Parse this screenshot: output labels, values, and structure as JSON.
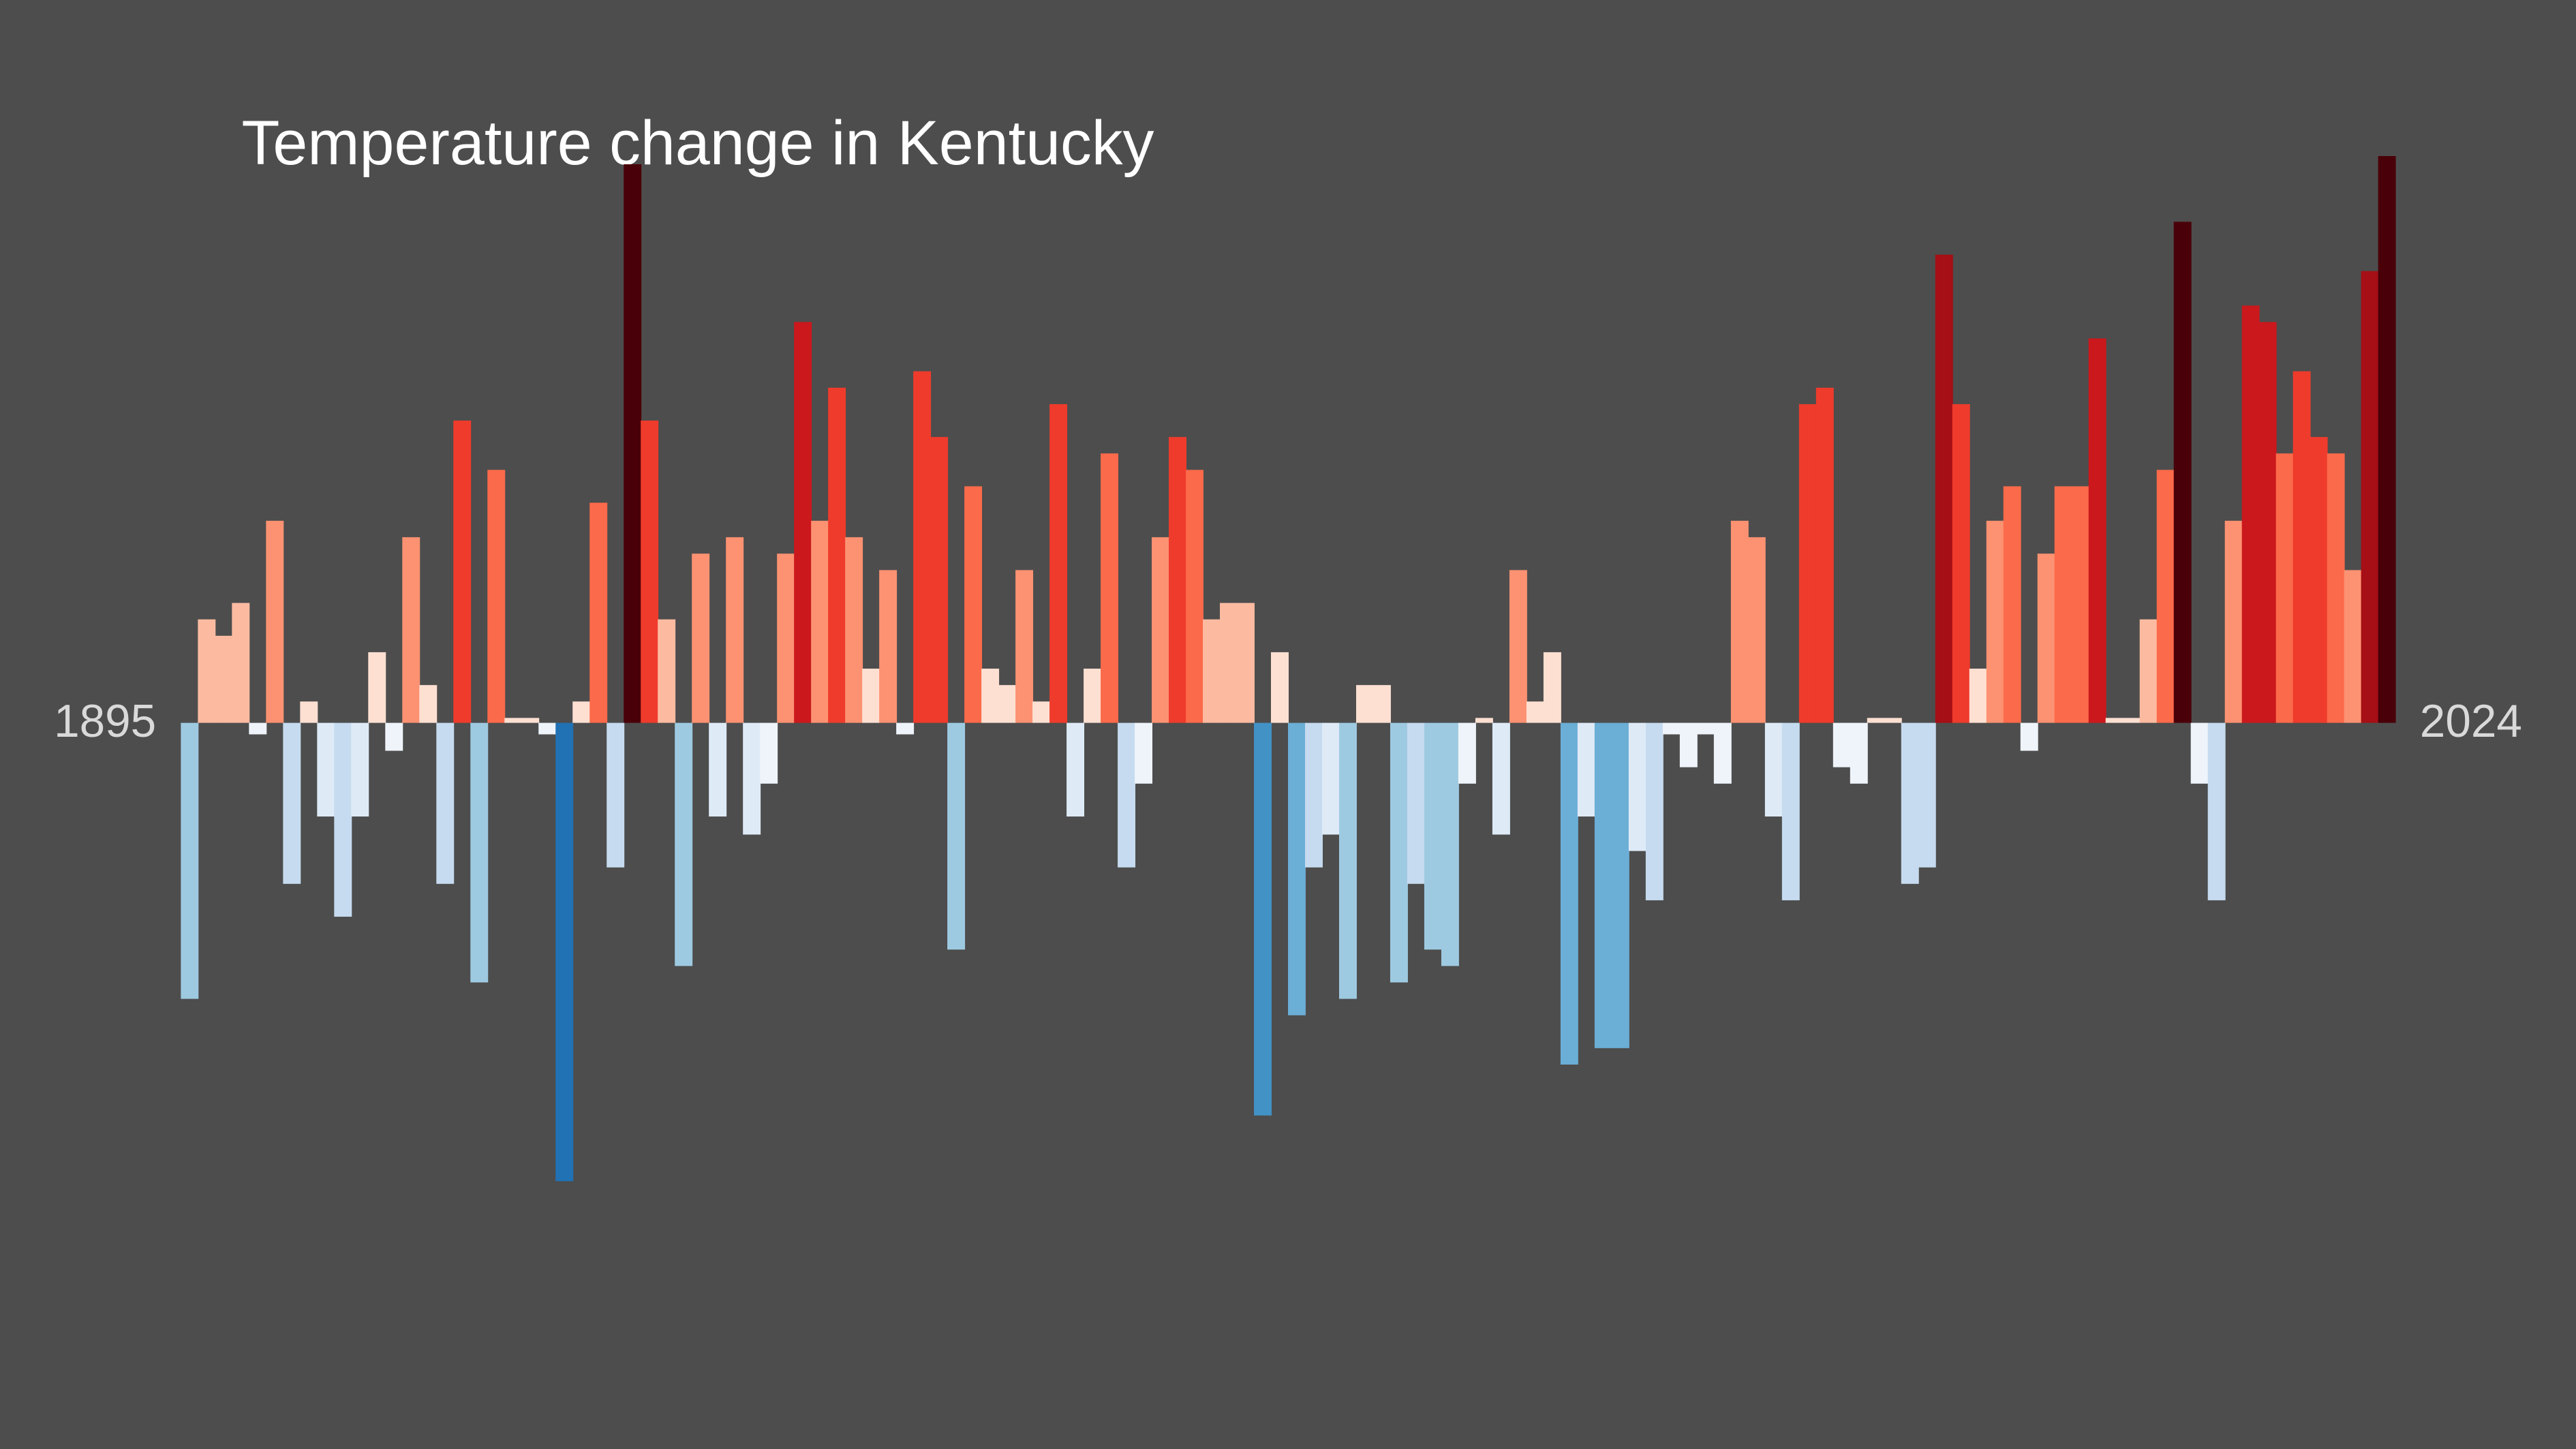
{
  "chart_data": {
    "type": "bar",
    "title": "Temperature change in Kentucky",
    "categories": [
      "1895",
      null,
      null,
      null,
      null,
      null,
      null,
      null,
      null,
      null,
      null,
      null,
      null,
      null,
      null,
      null,
      null,
      null,
      null,
      null,
      null,
      null,
      null,
      null,
      null,
      null,
      null,
      null,
      null,
      null,
      null,
      null,
      null,
      null,
      null,
      null,
      null,
      null,
      null,
      null,
      null,
      null,
      null,
      null,
      null,
      null,
      null,
      null,
      null,
      null,
      null,
      null,
      null,
      null,
      null,
      null,
      null,
      null,
      null,
      null,
      null,
      null,
      null,
      null,
      null,
      null,
      null,
      null,
      null,
      null,
      null,
      null,
      null,
      null,
      null,
      null,
      null,
      null,
      null,
      null,
      null,
      null,
      null,
      null,
      null,
      null,
      null,
      null,
      null,
      null,
      null,
      null,
      null,
      null,
      null,
      null,
      null,
      null,
      null,
      null,
      null,
      null,
      null,
      null,
      null,
      null,
      null,
      null,
      null,
      null,
      null,
      null,
      null,
      null,
      null,
      null,
      null,
      null,
      null,
      null,
      null,
      null,
      null,
      null,
      null,
      null,
      null,
      null,
      null,
      "2024"
    ],
    "values": [
      -1.68,
      0.63,
      0.53,
      0.73,
      -0.07,
      1.23,
      -0.98,
      0.13,
      -0.57,
      -1.18,
      -0.57,
      0.43,
      -0.17,
      1.13,
      0.23,
      -0.98,
      1.84,
      -1.58,
      1.54,
      0.03,
      0.03,
      -0.07,
      -2.79,
      0.13,
      1.34,
      -0.88,
      3.4,
      1.84,
      0.63,
      -1.48,
      1.03,
      -0.57,
      1.13,
      -0.68,
      -0.37,
      1.03,
      2.44,
      1.23,
      2.04,
      1.13,
      0.33,
      0.93,
      -0.07,
      2.14,
      1.74,
      -1.38,
      1.44,
      0.33,
      0.23,
      0.93,
      0.13,
      1.94,
      -0.57,
      0.33,
      1.64,
      -0.88,
      -0.37,
      1.13,
      1.74,
      1.54,
      0.63,
      0.73,
      0.73,
      -2.39,
      0.43,
      -1.78,
      -0.88,
      -0.68,
      -1.68,
      0.23,
      0.23,
      -1.58,
      -0.98,
      -1.38,
      -1.48,
      -0.37,
      0.03,
      -0.68,
      0.93,
      0.13,
      0.43,
      -2.08,
      -0.57,
      -1.98,
      -1.98,
      -0.78,
      -1.08,
      -0.07,
      -0.27,
      -0.07,
      -0.37,
      1.23,
      1.13,
      -0.57,
      -1.08,
      1.94,
      2.04,
      -0.27,
      -0.37,
      0.03,
      0.03,
      -0.98,
      -0.88,
      2.85,
      1.94,
      0.33,
      1.23,
      1.44,
      -0.17,
      1.03,
      1.44,
      1.44,
      2.34,
      0.03,
      0.03,
      0.63,
      1.54,
      3.05,
      -0.37,
      -1.08,
      1.23,
      2.54,
      2.44,
      1.64,
      2.14,
      1.74,
      1.64,
      0.93,
      2.75,
      3.45
    ],
    "ylim": [
      -4.42,
      4.4
    ],
    "color_scale": {
      "domain": [
        -3.45,
        3.45
      ],
      "colors": [
        "#08519c",
        "#2171b5",
        "#4292c6",
        "#6baed6",
        "#9ecae1",
        "#c6dbef",
        "#deebf7",
        "#eef4fa",
        "#fee0d2",
        "#fcbba1",
        "#fc9272",
        "#fb6a4a",
        "#ef3b2c",
        "#cb181d",
        "#a50f15",
        "#4a0008"
      ]
    },
    "background": "#4d4d4d"
  }
}
